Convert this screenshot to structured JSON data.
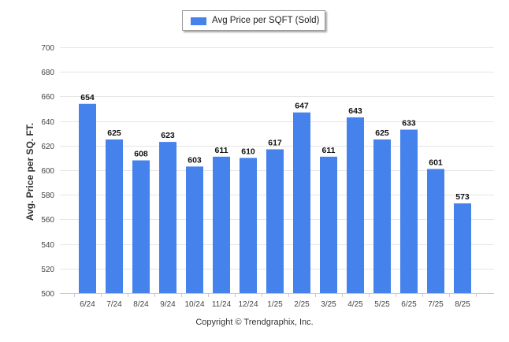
{
  "chart_data": {
    "type": "bar",
    "categories": [
      "6/24",
      "7/24",
      "8/24",
      "9/24",
      "10/24",
      "11/24",
      "12/24",
      "1/25",
      "2/25",
      "3/25",
      "4/25",
      "5/25",
      "6/25",
      "7/25",
      "8/25"
    ],
    "series": [
      {
        "name": "Avg Price per SQFT (Sold)",
        "values": [
          654,
          625,
          608,
          623,
          603,
          611,
          610,
          617,
          647,
          611,
          643,
          625,
          633,
          601,
          573
        ]
      }
    ],
    "ylabel": "Avg. Price per SQ. FT.",
    "xlabel": "",
    "ylim": [
      500,
      700
    ],
    "yticks": [
      500,
      520,
      540,
      560,
      580,
      600,
      620,
      640,
      660,
      680,
      700
    ],
    "grid": true,
    "legend_position": "top-center",
    "bar_color": "#4582ec",
    "footer": "Copyright © Trendgraphix, Inc."
  }
}
